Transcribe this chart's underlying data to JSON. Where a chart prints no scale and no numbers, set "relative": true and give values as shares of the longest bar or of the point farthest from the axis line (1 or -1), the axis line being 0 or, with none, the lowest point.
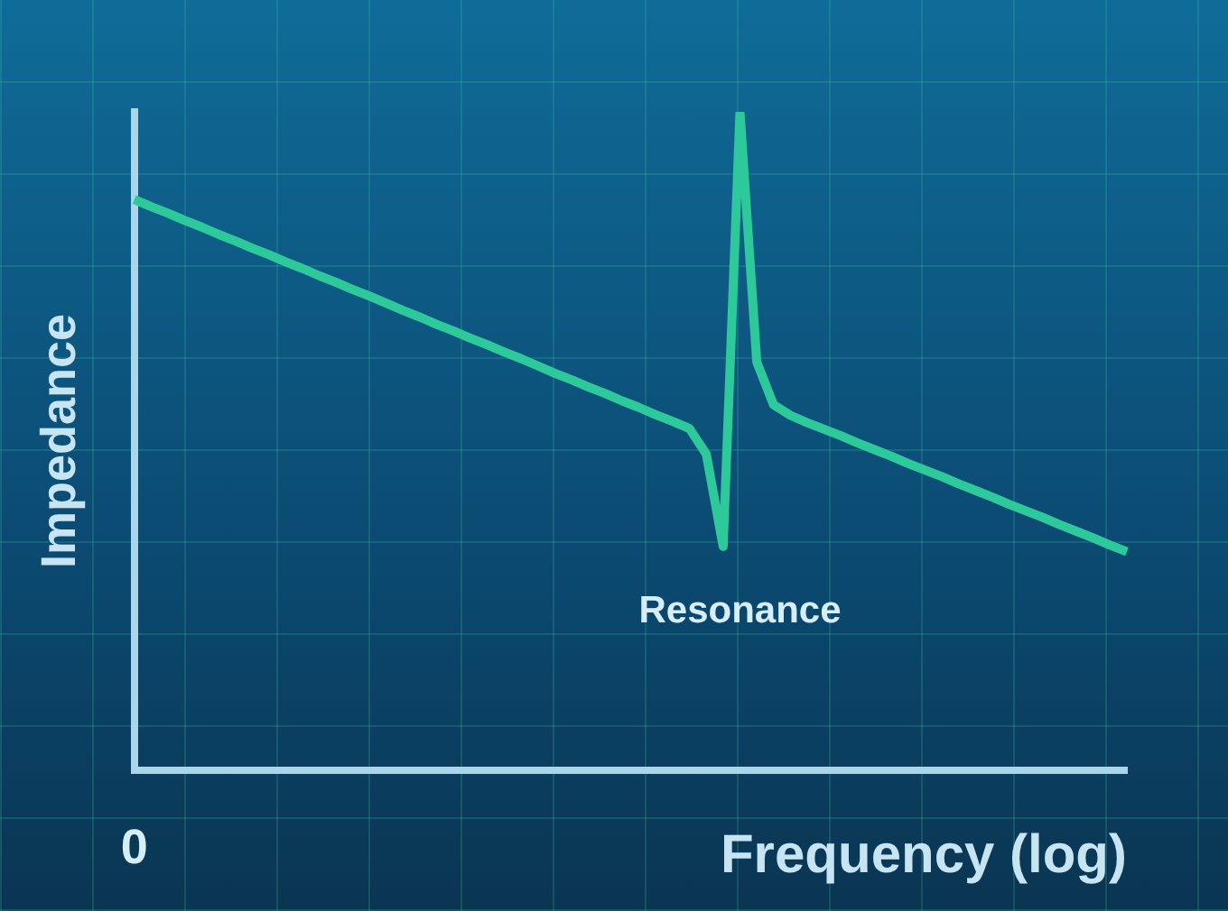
{
  "chart_data": {
    "type": "line",
    "relative": true,
    "xlabel": "Frequency (log)",
    "ylabel": "Impedance",
    "categories": [
      null,
      null,
      null,
      null,
      null,
      null,
      null,
      null,
      null,
      null,
      null,
      null,
      null,
      null,
      null,
      null,
      null,
      null,
      null,
      null,
      null,
      null,
      null,
      null,
      null,
      null,
      null,
      null,
      null,
      null,
      null,
      null,
      null,
      null,
      null,
      null,
      null,
      null,
      null,
      null,
      null,
      null,
      null,
      null,
      null,
      null,
      null,
      null,
      null,
      null,
      null,
      null,
      null,
      null,
      null,
      null,
      null,
      null,
      null,
      null
    ],
    "series": [
      {
        "color": "#2ec99a",
        "values": [
          0.867,
          0.856,
          0.846,
          0.835,
          0.825,
          0.814,
          0.804,
          0.793,
          0.783,
          0.772,
          0.762,
          0.751,
          0.741,
          0.73,
          0.72,
          0.709,
          0.698,
          0.688,
          0.677,
          0.667,
          0.656,
          0.646,
          0.635,
          0.625,
          0.614,
          0.603,
          0.593,
          0.582,
          0.572,
          0.561,
          0.551,
          0.54,
          0.53,
          0.519,
          0.48,
          0.34,
          1,
          0.62,
          0.555,
          0.539,
          0.528,
          0.518,
          0.508,
          0.497,
          0.487,
          0.477,
          0.466,
          0.456,
          0.446,
          0.435,
          0.425,
          0.415,
          0.404,
          0.394,
          0.384,
          0.373,
          0.363,
          0.353,
          0.342,
          0.332
        ]
      }
    ],
    "annotations": [
      "0",
      "Resonance"
    ]
  }
}
